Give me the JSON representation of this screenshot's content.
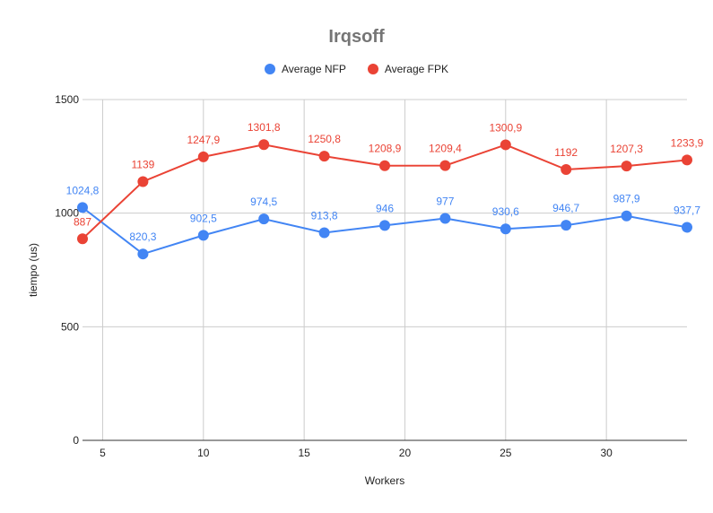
{
  "chart_data": {
    "type": "line",
    "title": "Irqsoff",
    "xlabel": "Workers",
    "ylabel": "tiempo (us)",
    "x": [
      4,
      7,
      10,
      13,
      16,
      19,
      22,
      25,
      28,
      31,
      34
    ],
    "xlim": [
      4,
      34
    ],
    "ylim": [
      0,
      1500
    ],
    "x_ticks": [
      5,
      10,
      15,
      20,
      25,
      30
    ],
    "y_ticks": [
      0,
      500,
      1000,
      1500
    ],
    "grid": true,
    "legend_position": "top",
    "series": [
      {
        "name": "Average NFP",
        "color": "#4285f4",
        "values": [
          1024.8,
          820.3,
          902.5,
          974.5,
          913.8,
          946,
          977,
          930.6,
          946.7,
          987.9,
          937.7
        ],
        "labels": [
          "1024,8",
          "820,3",
          "902,5",
          "974,5",
          "913,8",
          "946",
          "977",
          "930,6",
          "946,7",
          "987,9",
          "937,7"
        ]
      },
      {
        "name": "Average FPK",
        "color": "#ea4335",
        "values": [
          887,
          1139,
          1247.9,
          1301.8,
          1250.8,
          1208.9,
          1209.4,
          1300.9,
          1192,
          1207.3,
          1233.9
        ],
        "labels": [
          "887",
          "1139",
          "1247,9",
          "1301,8",
          "1250,8",
          "1208,9",
          "1209,4",
          "1300,9",
          "1192",
          "1207,3",
          "1233,9"
        ]
      }
    ]
  }
}
